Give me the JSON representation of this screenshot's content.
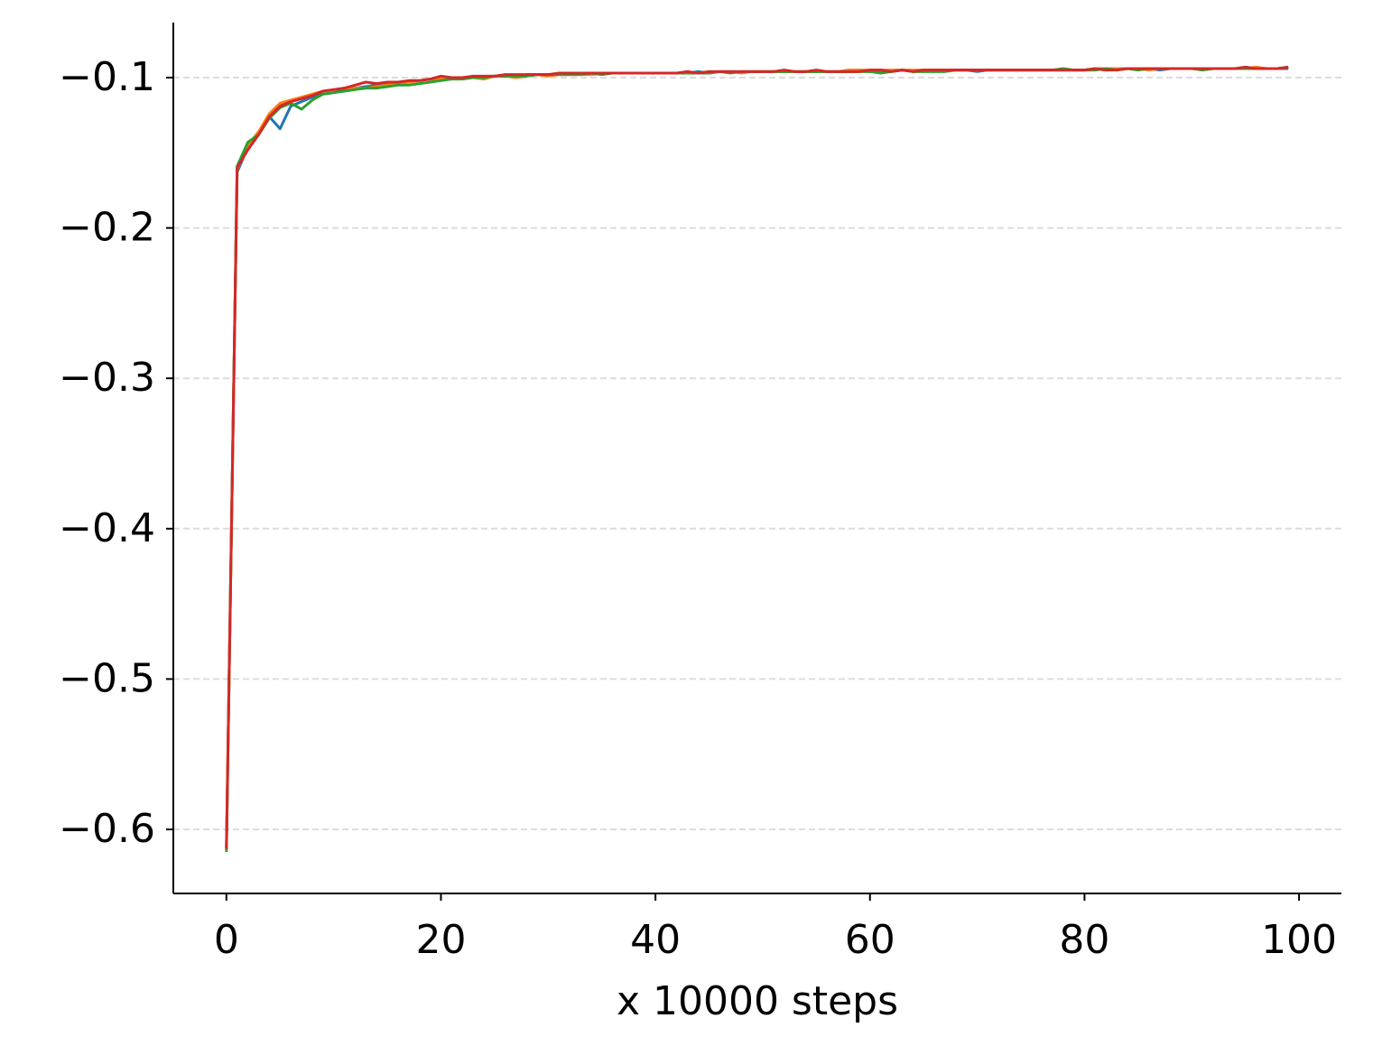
{
  "chart_data": {
    "type": "line",
    "x_label": "x 10000 steps",
    "x": [
      0,
      1,
      2,
      3,
      4,
      5,
      6,
      7,
      8,
      9,
      10,
      11,
      12,
      13,
      14,
      15,
      16,
      17,
      18,
      19,
      20,
      21,
      22,
      23,
      24,
      25,
      26,
      27,
      28,
      29,
      30,
      31,
      32,
      33,
      34,
      35,
      36,
      37,
      38,
      39,
      40,
      41,
      42,
      43,
      44,
      45,
      46,
      47,
      48,
      49,
      50,
      51,
      52,
      53,
      54,
      55,
      56,
      57,
      58,
      59,
      60,
      61,
      62,
      63,
      64,
      65,
      66,
      67,
      68,
      69,
      70,
      71,
      72,
      73,
      74,
      75,
      76,
      77,
      78,
      79,
      80,
      81,
      82,
      83,
      84,
      85,
      86,
      87,
      88,
      89,
      90,
      91,
      92,
      93,
      94,
      95,
      96,
      97,
      98,
      99
    ],
    "series": [
      {
        "color": "#1f77b4",
        "values": [
          -0.612,
          -0.163,
          -0.146,
          -0.137,
          -0.126,
          -0.134,
          -0.119,
          -0.116,
          -0.113,
          -0.111,
          -0.11,
          -0.108,
          -0.107,
          -0.106,
          -0.105,
          -0.104,
          -0.103,
          -0.103,
          -0.102,
          -0.101,
          -0.101,
          -0.1,
          -0.1,
          -0.1,
          -0.1,
          -0.099,
          -0.099,
          -0.099,
          -0.098,
          -0.098,
          -0.098,
          -0.098,
          -0.098,
          -0.097,
          -0.098,
          -0.097,
          -0.097,
          -0.097,
          -0.097,
          -0.097,
          -0.097,
          -0.097,
          -0.097,
          -0.097,
          -0.096,
          -0.097,
          -0.096,
          -0.096,
          -0.096,
          -0.096,
          -0.096,
          -0.096,
          -0.096,
          -0.096,
          -0.096,
          -0.096,
          -0.096,
          -0.096,
          -0.096,
          -0.095,
          -0.096,
          -0.095,
          -0.096,
          -0.095,
          -0.096,
          -0.095,
          -0.095,
          -0.095,
          -0.095,
          -0.095,
          -0.096,
          -0.095,
          -0.095,
          -0.095,
          -0.095,
          -0.095,
          -0.095,
          -0.095,
          -0.095,
          -0.095,
          -0.095,
          -0.094,
          -0.095,
          -0.094,
          -0.094,
          -0.094,
          -0.094,
          -0.095,
          -0.094,
          -0.094,
          -0.094,
          -0.094,
          -0.094,
          -0.094,
          -0.094,
          -0.094,
          -0.094,
          -0.094,
          -0.094,
          -0.094
        ]
      },
      {
        "color": "#ff7f0e",
        "values": [
          -0.613,
          -0.161,
          -0.145,
          -0.136,
          -0.124,
          -0.117,
          -0.115,
          -0.113,
          -0.111,
          -0.109,
          -0.108,
          -0.107,
          -0.107,
          -0.107,
          -0.106,
          -0.105,
          -0.104,
          -0.103,
          -0.102,
          -0.101,
          -0.101,
          -0.1,
          -0.1,
          -0.1,
          -0.101,
          -0.099,
          -0.099,
          -0.1,
          -0.099,
          -0.098,
          -0.099,
          -0.098,
          -0.098,
          -0.098,
          -0.098,
          -0.097,
          -0.097,
          -0.097,
          -0.097,
          -0.097,
          -0.097,
          -0.097,
          -0.097,
          -0.096,
          -0.097,
          -0.096,
          -0.096,
          -0.096,
          -0.097,
          -0.096,
          -0.096,
          -0.096,
          -0.096,
          -0.096,
          -0.096,
          -0.096,
          -0.096,
          -0.096,
          -0.095,
          -0.095,
          -0.095,
          -0.095,
          -0.095,
          -0.095,
          -0.095,
          -0.095,
          -0.095,
          -0.095,
          -0.095,
          -0.095,
          -0.095,
          -0.095,
          -0.095,
          -0.095,
          -0.095,
          -0.095,
          -0.095,
          -0.095,
          -0.095,
          -0.095,
          -0.095,
          -0.094,
          -0.094,
          -0.094,
          -0.094,
          -0.094,
          -0.095,
          -0.094,
          -0.094,
          -0.094,
          -0.094,
          -0.094,
          -0.094,
          -0.094,
          -0.094,
          -0.094,
          -0.093,
          -0.094,
          -0.094,
          -0.093
        ]
      },
      {
        "color": "#2ca02c",
        "values": [
          -0.615,
          -0.159,
          -0.143,
          -0.138,
          -0.127,
          -0.12,
          -0.117,
          -0.121,
          -0.115,
          -0.111,
          -0.11,
          -0.109,
          -0.108,
          -0.107,
          -0.107,
          -0.106,
          -0.105,
          -0.105,
          -0.104,
          -0.103,
          -0.102,
          -0.101,
          -0.101,
          -0.1,
          -0.1,
          -0.099,
          -0.099,
          -0.099,
          -0.099,
          -0.098,
          -0.098,
          -0.098,
          -0.098,
          -0.098,
          -0.097,
          -0.098,
          -0.097,
          -0.097,
          -0.097,
          -0.097,
          -0.097,
          -0.097,
          -0.097,
          -0.097,
          -0.097,
          -0.097,
          -0.096,
          -0.097,
          -0.096,
          -0.096,
          -0.096,
          -0.096,
          -0.096,
          -0.096,
          -0.096,
          -0.096,
          -0.096,
          -0.096,
          -0.096,
          -0.096,
          -0.096,
          -0.097,
          -0.096,
          -0.095,
          -0.096,
          -0.096,
          -0.096,
          -0.096,
          -0.095,
          -0.095,
          -0.095,
          -0.095,
          -0.095,
          -0.095,
          -0.095,
          -0.095,
          -0.095,
          -0.095,
          -0.094,
          -0.095,
          -0.095,
          -0.095,
          -0.094,
          -0.095,
          -0.094,
          -0.095,
          -0.094,
          -0.094,
          -0.094,
          -0.094,
          -0.094,
          -0.095,
          -0.094,
          -0.094,
          -0.094,
          -0.094,
          -0.094,
          -0.094,
          -0.094,
          -0.093
        ]
      },
      {
        "color": "#d62728",
        "values": [
          -0.613,
          -0.16,
          -0.148,
          -0.138,
          -0.126,
          -0.119,
          -0.116,
          -0.114,
          -0.112,
          -0.109,
          -0.108,
          -0.107,
          -0.105,
          -0.103,
          -0.104,
          -0.103,
          -0.103,
          -0.102,
          -0.102,
          -0.101,
          -0.099,
          -0.1,
          -0.1,
          -0.099,
          -0.099,
          -0.099,
          -0.098,
          -0.098,
          -0.098,
          -0.098,
          -0.098,
          -0.097,
          -0.097,
          -0.097,
          -0.097,
          -0.097,
          -0.097,
          -0.097,
          -0.097,
          -0.097,
          -0.097,
          -0.097,
          -0.097,
          -0.096,
          -0.097,
          -0.096,
          -0.096,
          -0.096,
          -0.096,
          -0.096,
          -0.096,
          -0.096,
          -0.095,
          -0.096,
          -0.096,
          -0.095,
          -0.096,
          -0.096,
          -0.096,
          -0.096,
          -0.095,
          -0.095,
          -0.096,
          -0.095,
          -0.096,
          -0.095,
          -0.095,
          -0.095,
          -0.095,
          -0.095,
          -0.095,
          -0.095,
          -0.095,
          -0.095,
          -0.095,
          -0.095,
          -0.095,
          -0.095,
          -0.095,
          -0.095,
          -0.095,
          -0.094,
          -0.095,
          -0.095,
          -0.094,
          -0.094,
          -0.094,
          -0.094,
          -0.094,
          -0.094,
          -0.094,
          -0.094,
          -0.094,
          -0.094,
          -0.094,
          -0.093,
          -0.094,
          -0.094,
          -0.094,
          -0.093
        ]
      }
    ],
    "xlim": [
      -4.95,
      103.95
    ],
    "xticks": [
      0,
      20,
      40,
      60,
      80,
      100
    ],
    "ylim": [
      -0.6426,
      -0.0634
    ],
    "yticks": [
      {
        "value": -0.6,
        "label": "−0.6"
      },
      {
        "value": -0.5,
        "label": "−0.5"
      },
      {
        "value": -0.4,
        "label": "−0.4"
      },
      {
        "value": -0.3,
        "label": "−0.3"
      },
      {
        "value": -0.2,
        "label": "−0.2"
      },
      {
        "value": -0.1,
        "label": "−0.1"
      }
    ],
    "grid": true
  }
}
